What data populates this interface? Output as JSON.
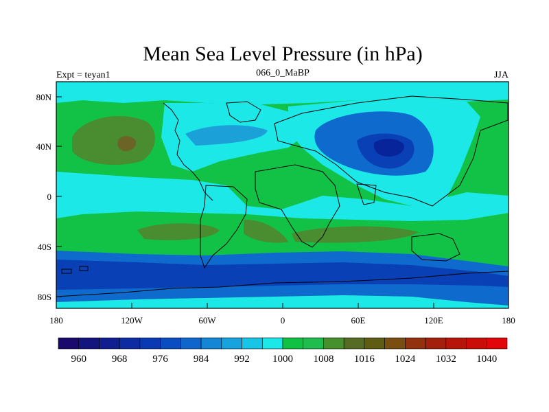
{
  "title": "Mean Sea Level Pressure (in hPa)",
  "subtitle_left": "Expt = teyan1",
  "subtitle_center": "066_0_MaBP",
  "subtitle_right": "JJA",
  "y_ticks": [
    "80N",
    "40N",
    "0",
    "40S",
    "80S"
  ],
  "x_ticks": [
    "180",
    "120W",
    "60W",
    "0",
    "60E",
    "120E",
    "180"
  ],
  "colorbar": {
    "labels": [
      "960",
      "968",
      "976",
      "984",
      "992",
      "1000",
      "1008",
      "1016",
      "1024",
      "1032",
      "1040"
    ],
    "colors": [
      "#1a0a6e",
      "#14147e",
      "#101e90",
      "#0d2ba2",
      "#0a3ab3",
      "#0a4dc2",
      "#0e66cc",
      "#1486d6",
      "#17a4de",
      "#19c5e6",
      "#1ce8ea",
      "#11c144",
      "#1fbc4e",
      "#47902e",
      "#566b23",
      "#5f5c14",
      "#7a4d10",
      "#91310e",
      "#a3200c",
      "#b7150a",
      "#cb0d08",
      "#e0060a"
    ]
  },
  "map_colors": {
    "c992": "#1ca0d8",
    "c1000": "#1ce8e8",
    "c1008": "#12c246",
    "c1016": "#4a8c30",
    "c1024": "#6b6426",
    "low1": "#0f6acd",
    "low2": "#0a40b6",
    "low3": "#08249a",
    "coast": "#000000"
  },
  "pressure_levels_hpa": [
    960,
    968,
    976,
    984,
    992,
    1000,
    1008,
    1016,
    1024,
    1032,
    1040
  ]
}
